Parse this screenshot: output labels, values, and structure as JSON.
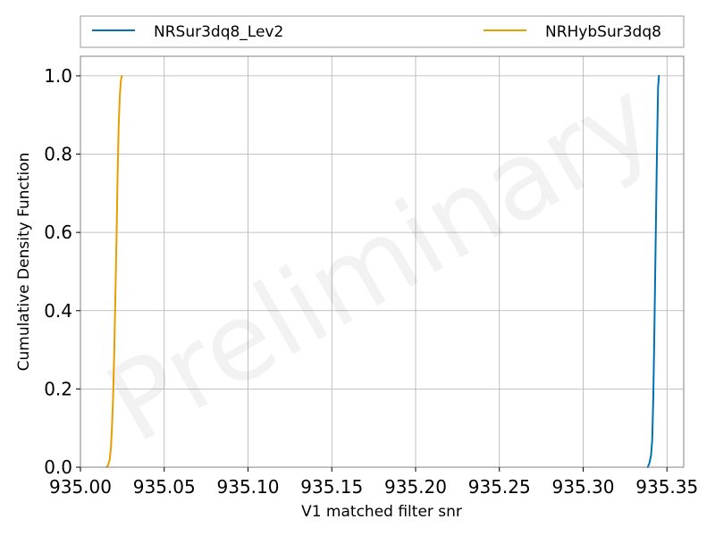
{
  "watermark": "Preliminary",
  "chart_data": {
    "type": "line",
    "xlabel": "V1 matched filter snr",
    "ylabel": "Cumulative Density Function",
    "xlim": [
      935.0,
      935.36
    ],
    "ylim": [
      0.0,
      1.05
    ],
    "xticks": [
      935.0,
      935.05,
      935.1,
      935.15,
      935.2,
      935.25,
      935.3,
      935.35
    ],
    "xtick_labels": [
      "935.00",
      "935.05",
      "935.10",
      "935.15",
      "935.20",
      "935.25",
      "935.30",
      "935.35"
    ],
    "yticks": [
      0.0,
      0.2,
      0.4,
      0.6,
      0.8,
      1.0
    ],
    "ytick_labels": [
      "0.0",
      "0.2",
      "0.4",
      "0.6",
      "0.8",
      "1.0"
    ],
    "grid": true,
    "legend_position": "top, outside plot area",
    "series": [
      {
        "name": "NRSur3dq8_Lev2",
        "color": "#0072b2",
        "x": [
          935.3385,
          935.3395,
          935.3405,
          935.3412,
          935.3418,
          935.3424,
          935.343,
          935.3436,
          935.3442,
          935.3447,
          935.3452
        ],
        "y": [
          0.0,
          0.01,
          0.03,
          0.07,
          0.17,
          0.32,
          0.5,
          0.68,
          0.85,
          0.97,
          1.0
        ]
      },
      {
        "name": "NRHybSur3dq8",
        "color": "#e69f00",
        "x": [
          935.0155,
          935.0165,
          935.0175,
          935.0182,
          935.0188,
          935.0195,
          935.0202,
          935.0209,
          935.0216,
          935.0222,
          935.0228,
          935.0235,
          935.0242,
          935.0247
        ],
        "y": [
          0.0,
          0.005,
          0.02,
          0.05,
          0.1,
          0.18,
          0.3,
          0.45,
          0.6,
          0.75,
          0.87,
          0.95,
          0.99,
          1.0
        ]
      }
    ]
  }
}
